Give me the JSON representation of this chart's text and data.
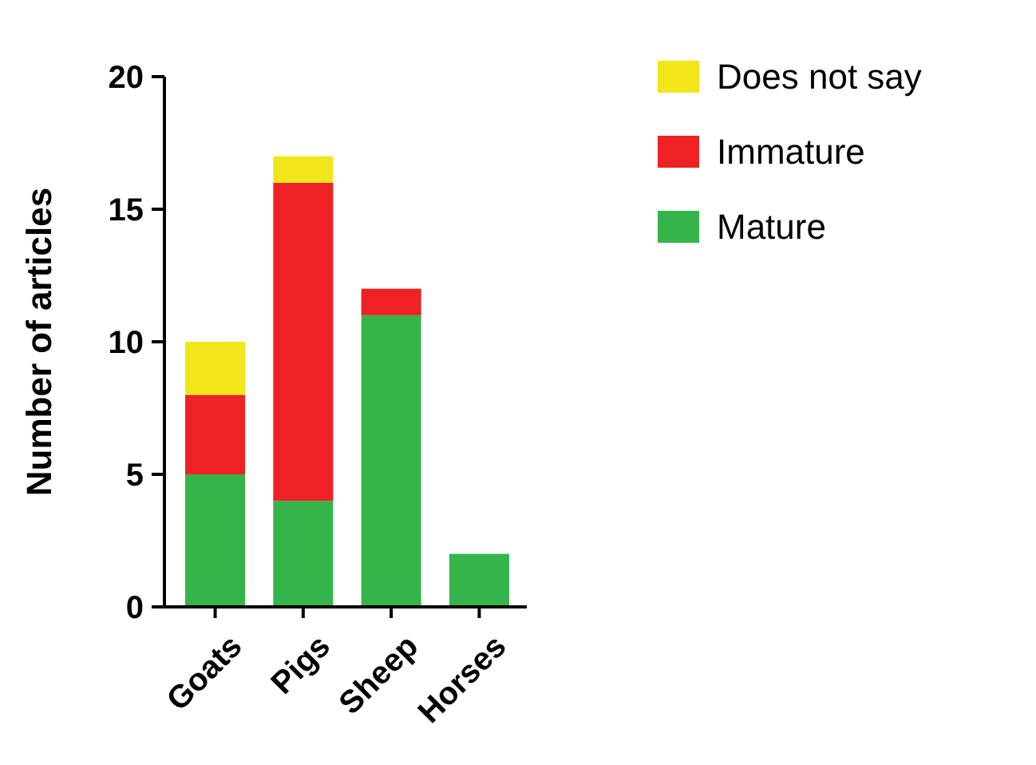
{
  "chart_data": {
    "type": "bar",
    "stacked": true,
    "ylabel": "Number of articles",
    "categories": [
      "Goats",
      "Pigs",
      "Sheep",
      "Horses"
    ],
    "series": [
      {
        "name": "Mature",
        "color": "#34b44a",
        "values": [
          5,
          4,
          11,
          2
        ]
      },
      {
        "name": "Immature",
        "color": "#ee2124",
        "values": [
          3,
          12,
          1,
          0
        ]
      },
      {
        "name": "Does not say",
        "color": "#f2e61a",
        "values": [
          2,
          1,
          0,
          0
        ]
      }
    ],
    "ylim": [
      0,
      20
    ],
    "yticks": [
      0,
      5,
      10,
      15,
      20
    ],
    "legend": "right",
    "grid": false
  }
}
